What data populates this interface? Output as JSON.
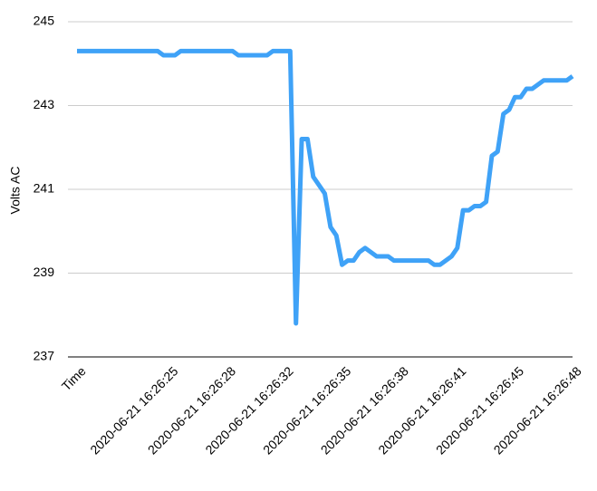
{
  "chart_data": {
    "type": "line",
    "y_label": "Volts AC",
    "categories": [
      "Time",
      null,
      null,
      null,
      null,
      null,
      null,
      null,
      null,
      null,
      null,
      null,
      null,
      null,
      null,
      null,
      "2020-06-21 16:26:25",
      null,
      null,
      null,
      null,
      null,
      null,
      null,
      null,
      null,
      "2020-06-21 16:26:28",
      null,
      null,
      null,
      null,
      null,
      null,
      null,
      null,
      null,
      "2020-06-21 16:26:32",
      null,
      null,
      null,
      null,
      null,
      null,
      null,
      null,
      null,
      "2020-06-21 16:26:35",
      null,
      null,
      null,
      null,
      null,
      null,
      null,
      null,
      null,
      "2020-06-21 16:26:38",
      null,
      null,
      null,
      null,
      null,
      null,
      null,
      null,
      null,
      "2020-06-21 16:26:41",
      null,
      null,
      null,
      null,
      null,
      null,
      null,
      null,
      null,
      "2020-06-21 16:26:45",
      null,
      null,
      null,
      null,
      null,
      null,
      null,
      null,
      null,
      "2020-06-21 16:26:48"
    ],
    "series": [
      {
        "name": "Volts AC",
        "color": "#3fa2f7",
        "values": [
          244.3,
          244.3,
          244.3,
          244.3,
          244.3,
          244.3,
          244.3,
          244.3,
          244.3,
          244.3,
          244.3,
          244.3,
          244.3,
          244.3,
          244.3,
          244.2,
          244.2,
          244.2,
          244.3,
          244.3,
          244.3,
          244.3,
          244.3,
          244.3,
          244.3,
          244.3,
          244.3,
          244.3,
          244.2,
          244.2,
          244.2,
          244.2,
          244.2,
          244.2,
          244.3,
          244.3,
          244.3,
          244.3,
          237.8,
          242.2,
          242.2,
          241.3,
          241.1,
          240.9,
          240.1,
          239.9,
          239.2,
          239.3,
          239.3,
          239.5,
          239.6,
          239.5,
          239.4,
          239.4,
          239.4,
          239.3,
          239.3,
          239.3,
          239.3,
          239.3,
          239.3,
          239.3,
          239.2,
          239.2,
          239.3,
          239.4,
          239.6,
          240.5,
          240.5,
          240.6,
          240.6,
          240.7,
          241.8,
          241.9,
          242.8,
          242.9,
          243.2,
          243.2,
          243.4,
          243.4,
          243.5,
          243.6,
          243.6,
          243.6,
          243.6,
          243.6,
          243.7
        ]
      }
    ],
    "ylim": [
      237,
      245
    ],
    "yticks": [
      237,
      239,
      241,
      243,
      245
    ],
    "grid": true
  }
}
